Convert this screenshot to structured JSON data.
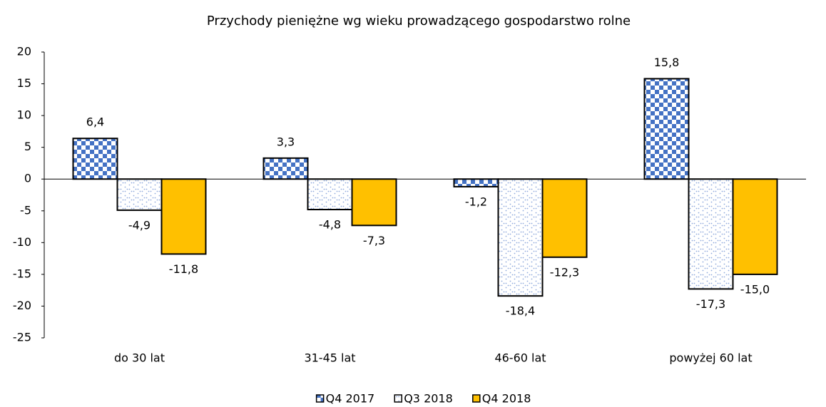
{
  "chart_data": {
    "type": "bar",
    "title": "Przychody pieniężne wg wieku prowadzącego gospodarstwo rolne",
    "categories": [
      "do 30 lat",
      "31-45 lat",
      "46-60 lat",
      "powyżej 60 lat"
    ],
    "series": [
      {
        "name": "Q4 2017",
        "color": "#4472c4",
        "pattern": "checker",
        "values": [
          6.4,
          3.3,
          -1.2,
          15.8
        ],
        "value_labels": [
          "6,4",
          "3,3",
          "-1,2",
          "15,8"
        ]
      },
      {
        "name": "Q3 2018",
        "color": "#8faadc",
        "pattern": "dots",
        "values": [
          -4.9,
          -4.8,
          -18.4,
          -17.3
        ],
        "value_labels": [
          "-4,9",
          "-4,8",
          "-18,4",
          "-17,3"
        ]
      },
      {
        "name": "Q4 2018",
        "color": "#ffc000",
        "pattern": "solid",
        "values": [
          -11.8,
          -7.3,
          -12.3,
          -15.0
        ],
        "value_labels": [
          "-11,8",
          "-7,3",
          "-12,3",
          "-15,0"
        ]
      }
    ],
    "ylim": [
      -25,
      20
    ],
    "yticks": [
      20,
      15,
      10,
      5,
      0,
      -5,
      -10,
      -15,
      -20,
      -25
    ],
    "grid": false,
    "legend": "bottom"
  }
}
